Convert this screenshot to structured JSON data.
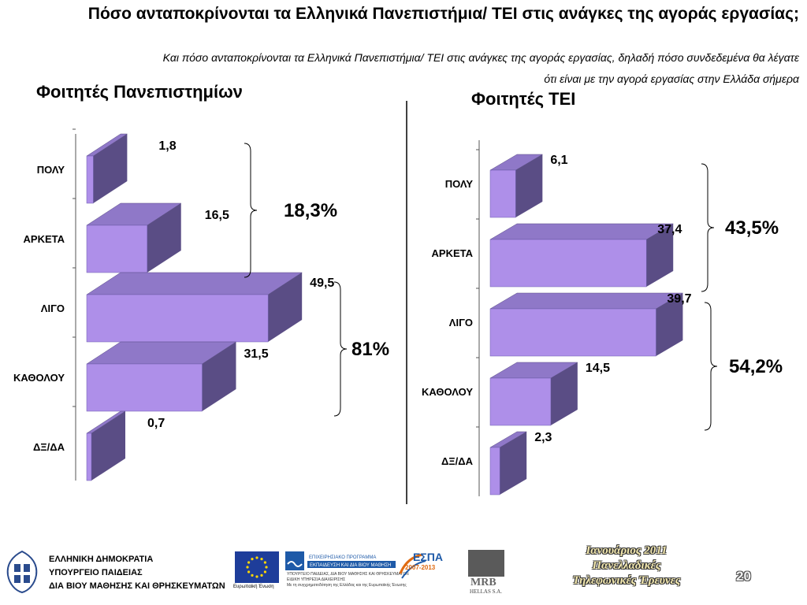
{
  "header": {
    "title": "Πόσο ανταποκρίνονται τα Ελληνικά Πανεπιστήμια/ ΤΕΙ στις ανάγκες της αγοράς εργασίας;",
    "subtitle_line1": "Και πόσο ανταποκρίνονται τα Ελληνικά Πανεπιστήμια/ ΤΕΙ στις ανάγκες της αγοράς εργασίας, δηλαδή  πόσο συνδεδεμένα θα λέγατε",
    "subtitle_line2": "ότι είναι με την αγορά εργασίας στην Ελλάδα σήμερα"
  },
  "chart_data": [
    {
      "type": "bar",
      "orientation": "horizontal",
      "title": "Φοιτητές Πανεπιστημίων",
      "categories": [
        "ΠΟΛΥ",
        "ΑΡΚΕΤΑ",
        "ΛΙΓΟ",
        "ΚΑΘΟΛΟΥ",
        "ΔΞ/ΔΑ"
      ],
      "values": [
        1.8,
        16.5,
        49.5,
        31.5,
        0.7
      ],
      "value_labels": [
        "1,8",
        "16,5",
        "49,5",
        "31,5",
        "0,7"
      ],
      "groups": [
        {
          "label": "18,3%",
          "from": 0,
          "to": 1
        },
        {
          "label": "81%",
          "from": 2,
          "to": 3
        }
      ],
      "bar_color": "#ae8fe9",
      "bar_side_color": "#5a4d85",
      "bar_top_color": "#8f78c8"
    },
    {
      "type": "bar",
      "orientation": "horizontal",
      "title": "Φοιτητές ΤΕΙ",
      "categories": [
        "ΠΟΛΥ",
        "ΑΡΚΕΤΑ",
        "ΛΙΓΟ",
        "ΚΑΘΟΛΟΥ",
        "ΔΞ/ΔΑ"
      ],
      "values": [
        6.1,
        37.4,
        39.7,
        14.5,
        2.3
      ],
      "value_labels": [
        "6,1",
        "37,4",
        "39,7",
        "14,5",
        "2,3"
      ],
      "groups": [
        {
          "label": "43,5%",
          "from": 0,
          "to": 1
        },
        {
          "label": "54,2%",
          "from": 2,
          "to": 3
        }
      ],
      "bar_color": "#ae8fe9",
      "bar_side_color": "#5a4d85",
      "bar_top_color": "#8f78c8"
    }
  ],
  "footer": {
    "ministry_line1": "ΕΛΛΗΝΙΚΗ ΔΗΜΟΚΡΑΤΙΑ",
    "ministry_line2": "ΥΠΟΥΡΓΕΙΟ ΠΑΙΔΕΙΑΣ",
    "ministry_line3": "ΔΙΑ ΒΙΟΥ ΜΑΘΗΣΗΣ ΚΑΙ ΘΡΗΣΚΕΥΜΑΤΩΝ",
    "eu_caption": "Ευρωπαϊκή Ένωση",
    "ep_logo_line1": "ΕΠΙΧΕΙΡΗΣΙΑΚΟ ΠΡΟΓΡΑΜΜΑ",
    "ep_logo_line2": "ΕΚΠΑΙΔΕΥΣΗ ΚΑΙ ΔΙΑ ΒΙΟΥ ΜΑΘΗΣΗ",
    "ep_lines": "ΥΠΟΥΡΓΕΙΟ ΠΑΙΔΕΙΑΣ, ΔΙΑ ΒΙΟΥ ΜΑΘΗΣΗΣ ΚΑΙ ΘΡΗΣΚΕΥΜΑΤΩΝ",
    "ep_lines2": "ΕΙΔΙΚΗ ΥΠΗΡΕΣΙΑ ΔΙΑΧΕΙΡΙΣΗΣ",
    "ep_lines3": "Με τη συγχρηματοδότηση της Ελλάδας και της Ευρωπαϊκής Ένωσης",
    "espa": "ΕΣΠΑ",
    "espa_years": "2007-2013",
    "mrb": "MRB",
    "mrb_sub": "HELLAS S.A.",
    "date_line": "Ιανουάριος 2011",
    "survey_line1": "Πανελλαδικές",
    "survey_line2": "Τηλεφωνικές Έρευνες",
    "page_number": "20"
  },
  "colors": {
    "eu_blue": "#1e3d9a",
    "eu_star": "#ffd700",
    "ep_blue": "#1e5aa8",
    "espa_blue": "#1e5aa8",
    "espa_orange": "#e06a10"
  }
}
